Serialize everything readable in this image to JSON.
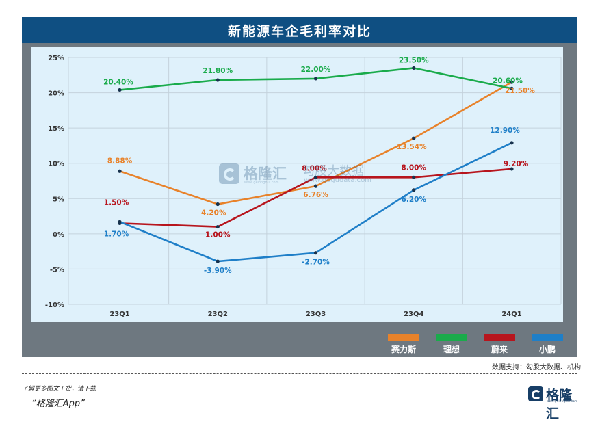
{
  "title": "新能源车企毛利率对比",
  "source": "数据支持：勾股大数据、机构",
  "footer": {
    "note": "了解更多图文干货，请下载",
    "app": "“格隆汇App”",
    "logo_text": "格隆汇",
    "logo_sub": "www.gelonghui.com"
  },
  "watermark": {
    "brand": "格隆汇",
    "brand_url": "www.gelonghui.com",
    "partner": "勾股大数据",
    "partner_url": "www.gogudata.com"
  },
  "chart_data": {
    "type": "line",
    "title": "新能源车企毛利率对比",
    "categories": [
      "23Q1",
      "23Q2",
      "23Q3",
      "23Q4",
      "24Q1"
    ],
    "ylim": [
      -10,
      25
    ],
    "yticks": [
      25,
      20,
      15,
      10,
      5,
      0,
      -5,
      -10
    ],
    "ytick_labels": [
      "25%",
      "20%",
      "15%",
      "10%",
      "5%",
      "0%",
      "-5%",
      "-10%"
    ],
    "grid": true,
    "legend_position": "bottom-right",
    "series": [
      {
        "name": "赛力斯",
        "color": "#e8822a",
        "values": [
          8.88,
          4.2,
          6.76,
          13.54,
          21.5
        ],
        "labels": [
          "8.88%",
          "4.20%",
          "6.76%",
          "13.54%",
          "21.50%"
        ]
      },
      {
        "name": "理想",
        "color": "#1aab4b",
        "values": [
          20.4,
          21.8,
          22.0,
          23.5,
          20.6
        ],
        "labels": [
          "20.40%",
          "21.80%",
          "22.00%",
          "23.50%",
          "20.60%"
        ]
      },
      {
        "name": "蔚来",
        "color": "#b7151d",
        "values": [
          1.5,
          1.0,
          8.0,
          8.0,
          9.2
        ],
        "labels": [
          "1.50%",
          "1.00%",
          "8.00%",
          "8.00%",
          "9.20%"
        ]
      },
      {
        "name": "小鹏",
        "color": "#1f7fc8",
        "values": [
          1.7,
          -3.9,
          -2.7,
          6.2,
          12.9
        ],
        "labels": [
          "1.70%",
          "-3.90%",
          "-2.70%",
          "6.20%",
          "12.90%"
        ]
      }
    ]
  }
}
